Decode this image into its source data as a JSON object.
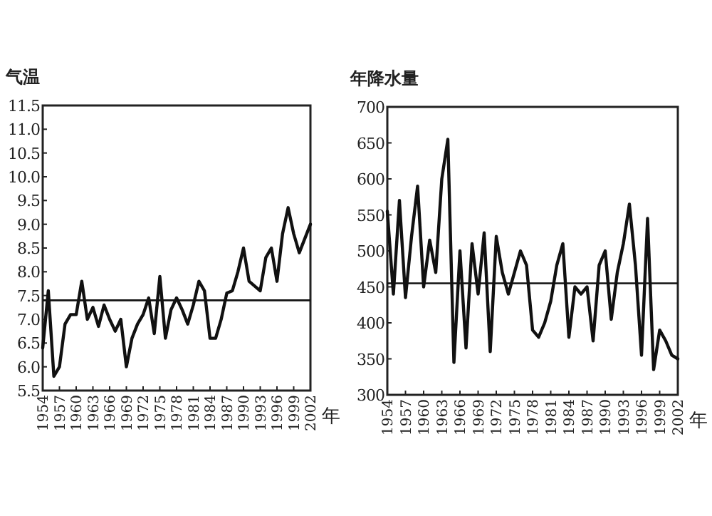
{
  "chart_data": [
    {
      "type": "line",
      "ylabel": "气温",
      "xlabel": "年",
      "grid": false,
      "marker": "none",
      "line_style": "solid",
      "x": [
        1954,
        1955,
        1956,
        1957,
        1958,
        1959,
        1960,
        1961,
        1962,
        1963,
        1964,
        1965,
        1966,
        1967,
        1968,
        1969,
        1970,
        1971,
        1972,
        1973,
        1974,
        1975,
        1976,
        1977,
        1978,
        1979,
        1980,
        1981,
        1982,
        1983,
        1984,
        1985,
        1986,
        1987,
        1988,
        1989,
        1990,
        1991,
        1992,
        1993,
        1994,
        1995,
        1996,
        1997,
        1998,
        1999,
        2000,
        2001,
        2002
      ],
      "series": [
        {
          "color": "#111111",
          "values": [
            6.4,
            7.6,
            5.8,
            6.0,
            6.9,
            7.1,
            7.1,
            7.8,
            7.0,
            7.25,
            6.85,
            7.3,
            7.0,
            6.75,
            7.0,
            6.0,
            6.6,
            6.9,
            7.1,
            7.45,
            6.7,
            7.9,
            6.6,
            7.2,
            7.45,
            7.2,
            6.9,
            7.3,
            7.8,
            7.6,
            6.6,
            6.6,
            7.0,
            7.55,
            7.6,
            8.0,
            8.5,
            7.8,
            7.7,
            7.6,
            8.3,
            8.5,
            7.8,
            8.8,
            9.35,
            8.8,
            8.4,
            8.7,
            9.0
          ]
        }
      ],
      "ref_lines": [
        {
          "axis": "y",
          "value": 7.4,
          "color": "#111111"
        }
      ],
      "xlim": [
        1954,
        2002
      ],
      "xticks": [
        1954,
        1957,
        1960,
        1963,
        1966,
        1969,
        1972,
        1975,
        1978,
        1981,
        1984,
        1987,
        1990,
        1993,
        1996,
        1999,
        2002
      ],
      "ylim": [
        5.5,
        11.5
      ],
      "yticks": [
        {
          "value": 5.5,
          "label": "5.5"
        },
        {
          "value": 6,
          "label": "6.0"
        },
        {
          "value": 6.5,
          "label": "6.5"
        },
        {
          "value": 7,
          "label": "7.0"
        },
        {
          "value": 7.5,
          "label": "7.5"
        },
        {
          "value": 8,
          "label": "8.0"
        },
        {
          "value": 8.5,
          "label": "8.5"
        },
        {
          "value": 9,
          "label": "9.0"
        },
        {
          "value": 9.5,
          "label": "9.5"
        },
        {
          "value": 10,
          "label": "10.0"
        },
        {
          "value": 10.5,
          "label": "10.5"
        },
        {
          "value": 11,
          "label": "11.0"
        },
        {
          "value": 11.5,
          "label": "11.5"
        }
      ]
    },
    {
      "type": "line",
      "ylabel": "年降水量",
      "xlabel": "年",
      "grid": false,
      "marker": "none",
      "line_style": "solid",
      "x": [
        1954,
        1955,
        1956,
        1957,
        1958,
        1959,
        1960,
        1961,
        1962,
        1963,
        1964,
        1965,
        1966,
        1967,
        1968,
        1969,
        1970,
        1971,
        1972,
        1973,
        1974,
        1975,
        1976,
        1977,
        1978,
        1979,
        1980,
        1981,
        1982,
        1983,
        1984,
        1985,
        1986,
        1987,
        1988,
        1989,
        1990,
        1991,
        1992,
        1993,
        1994,
        1995,
        1996,
        1997,
        1998,
        1999,
        2000,
        2001,
        2002
      ],
      "series": [
        {
          "color": "#111111",
          "values": [
            555,
            440,
            570,
            435,
            520,
            590,
            450,
            515,
            470,
            600,
            655,
            345,
            500,
            365,
            510,
            440,
            525,
            360,
            520,
            470,
            440,
            470,
            500,
            480,
            390,
            380,
            400,
            430,
            480,
            510,
            380,
            450,
            440,
            450,
            375,
            480,
            500,
            405,
            470,
            510,
            565,
            480,
            355,
            545,
            335,
            390,
            375,
            355,
            350
          ]
        }
      ],
      "ref_lines": [
        {
          "axis": "y",
          "value": 455,
          "color": "#111111"
        }
      ],
      "xlim": [
        1954,
        2002
      ],
      "xticks": [
        1954,
        1957,
        1960,
        1963,
        1966,
        1969,
        1972,
        1975,
        1978,
        1981,
        1984,
        1987,
        1990,
        1993,
        1996,
        1999,
        2002
      ],
      "ylim": [
        300,
        700
      ],
      "yticks": [
        300,
        350,
        400,
        450,
        500,
        550,
        600,
        650,
        700
      ]
    }
  ]
}
